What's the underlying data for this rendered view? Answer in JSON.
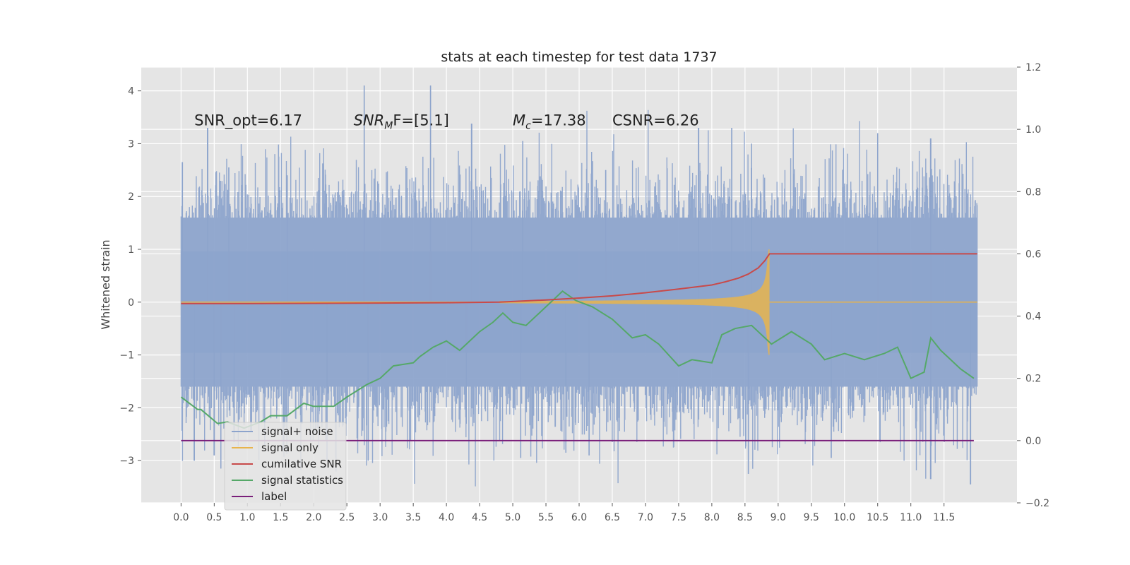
{
  "chart_data": {
    "type": "line",
    "title": "stats at each timestep for test data 1737",
    "ylabel": "Whitened strain",
    "xlabel": "",
    "xlim": [
      -0.6,
      12.6
    ],
    "ylim": [
      -3.8,
      4.45
    ],
    "y2lim": [
      -0.2,
      1.2
    ],
    "x_ticks": [
      0.0,
      0.5,
      1.0,
      1.5,
      2.0,
      2.5,
      3.0,
      3.5,
      4.0,
      4.5,
      5.0,
      5.5,
      6.0,
      6.5,
      7.0,
      7.5,
      8.0,
      8.5,
      9.0,
      9.5,
      10.0,
      10.5,
      11.0,
      11.5
    ],
    "x_tick_labels": [
      "0.0",
      "0.5",
      "1.0",
      "1.5",
      "2.0",
      "2.5",
      "3.0",
      "3.5",
      "4.0",
      "4.5",
      "5.0",
      "5.5",
      "6.0",
      "6.5",
      "7.0",
      "7.5",
      "8.0",
      "8.5",
      "9.0",
      "9.5",
      "10.0",
      "10.5",
      "11.0",
      "11.5"
    ],
    "y_ticks": [
      4,
      3,
      2,
      1,
      0,
      -1,
      -2,
      -3
    ],
    "y_tick_labels": [
      "4",
      "3",
      "2",
      "1",
      "0",
      "−1",
      "−2",
      "−3"
    ],
    "y2_ticks": [
      1.2,
      1.0,
      0.8,
      0.6,
      0.4,
      0.2,
      0.0,
      -0.2
    ],
    "y2_tick_labels": [
      "1.2",
      "1.0",
      "0.8",
      "0.6",
      "0.4",
      "0.2",
      "0.0",
      "−0.2"
    ],
    "grid": true,
    "background": "#e5e5e5",
    "annotations": [
      {
        "text": "SNR_opt=6.17",
        "x": 0.2,
        "y": 3.35
      },
      {
        "text": "SNR_MF=[5.1]",
        "x": 2.6,
        "y": 3.35,
        "main": "SNR",
        "sub": "M",
        "rest": "F=[5.1]"
      },
      {
        "text": "M_c=17.38",
        "x": 5.0,
        "y": 3.35,
        "main": "M",
        "sub": "c",
        "rest": "=17.38"
      },
      {
        "text": "CSNR=6.26",
        "x": 6.5,
        "y": 3.35
      }
    ],
    "legend_position": "lower-left",
    "series": [
      {
        "name": "signal+ noise",
        "color": "#8da4cc",
        "axis": "left",
        "kind": "noise",
        "x_range": [
          0.0,
          12.0
        ],
        "band_upper": 1.6,
        "band_lower": -1.6,
        "peaks_up": [
          [
            0.02,
            2.65
          ],
          [
            0.4,
            3.3
          ],
          [
            0.72,
            2.55
          ],
          [
            1.6,
            2.4
          ],
          [
            2.76,
            4.1
          ],
          [
            3.76,
            4.1
          ],
          [
            4.38,
            3.38
          ],
          [
            5.15,
            3.05
          ],
          [
            6.4,
            2.5
          ],
          [
            7.8,
            3.3
          ],
          [
            8.3,
            3.3
          ],
          [
            8.6,
            3.0
          ],
          [
            10.5,
            3.2
          ],
          [
            11.3,
            3.1
          ]
        ],
        "peaks_down": [
          [
            0.2,
            -3.0
          ],
          [
            0.5,
            -2.9
          ],
          [
            0.6,
            -3.15
          ],
          [
            0.8,
            -2.65
          ],
          [
            2.2,
            -3.0
          ],
          [
            2.82,
            -3.0
          ],
          [
            4.3,
            -2.3
          ],
          [
            5.12,
            -2.95
          ],
          [
            5.8,
            -2.85
          ],
          [
            6.15,
            -2.9
          ],
          [
            8.55,
            -3.25
          ],
          [
            9.8,
            -2.95
          ],
          [
            11.3,
            -3.35
          ],
          [
            11.9,
            -3.45
          ]
        ]
      },
      {
        "name": "signal only",
        "color": "#e8b44c",
        "axis": "left",
        "kind": "chirp",
        "x_range": [
          0.0,
          12.0
        ],
        "merger_x": 8.87,
        "peak_amplitude": 1.0
      },
      {
        "name": "cumilative SNR",
        "color": "#c84a4a",
        "axis": "right",
        "x": [
          0.0,
          1.0,
          2.0,
          3.0,
          4.0,
          4.8,
          5.5,
          6.0,
          6.5,
          7.0,
          7.5,
          8.0,
          8.2,
          8.4,
          8.55,
          8.7,
          8.8,
          8.87,
          9.0,
          10.0,
          11.0,
          12.0
        ],
        "values": [
          0.44,
          0.44,
          0.441,
          0.442,
          0.443,
          0.445,
          0.452,
          0.458,
          0.465,
          0.475,
          0.487,
          0.5,
          0.51,
          0.522,
          0.535,
          0.555,
          0.578,
          0.6,
          0.6,
          0.6,
          0.6,
          0.6
        ]
      },
      {
        "name": "signal statistics",
        "color": "#55a868",
        "axis": "right",
        "x": [
          0.0,
          0.25,
          0.3,
          0.55,
          0.7,
          0.95,
          1.2,
          1.35,
          1.6,
          1.85,
          2.0,
          2.3,
          2.5,
          2.8,
          3.0,
          3.2,
          3.5,
          3.6,
          3.8,
          4.0,
          4.2,
          4.5,
          4.7,
          4.85,
          5.0,
          5.2,
          5.5,
          5.75,
          5.95,
          6.2,
          6.5,
          6.8,
          7.0,
          7.2,
          7.5,
          7.7,
          8.0,
          8.15,
          8.35,
          8.6,
          8.9,
          9.2,
          9.5,
          9.7,
          10.0,
          10.3,
          10.6,
          10.8,
          11.0,
          11.2,
          11.3,
          11.45,
          11.55,
          11.75,
          11.95
        ],
        "values": [
          0.14,
          0.1,
          0.1,
          0.055,
          0.06,
          0.04,
          0.06,
          0.08,
          0.08,
          0.12,
          0.11,
          0.11,
          0.14,
          0.18,
          0.2,
          0.24,
          0.25,
          0.27,
          0.3,
          0.32,
          0.29,
          0.35,
          0.38,
          0.41,
          0.38,
          0.37,
          0.43,
          0.48,
          0.45,
          0.43,
          0.39,
          0.33,
          0.34,
          0.31,
          0.24,
          0.26,
          0.25,
          0.34,
          0.36,
          0.37,
          0.31,
          0.35,
          0.31,
          0.26,
          0.28,
          0.26,
          0.28,
          0.3,
          0.2,
          0.22,
          0.33,
          0.29,
          0.27,
          0.23,
          0.2
        ]
      },
      {
        "name": "label",
        "color": "#7a1f7a",
        "axis": "right",
        "x": [
          0.0,
          11.95
        ],
        "values": [
          0.0,
          0.0
        ]
      }
    ],
    "legend_overlap_text": "cumilative SNR"
  }
}
